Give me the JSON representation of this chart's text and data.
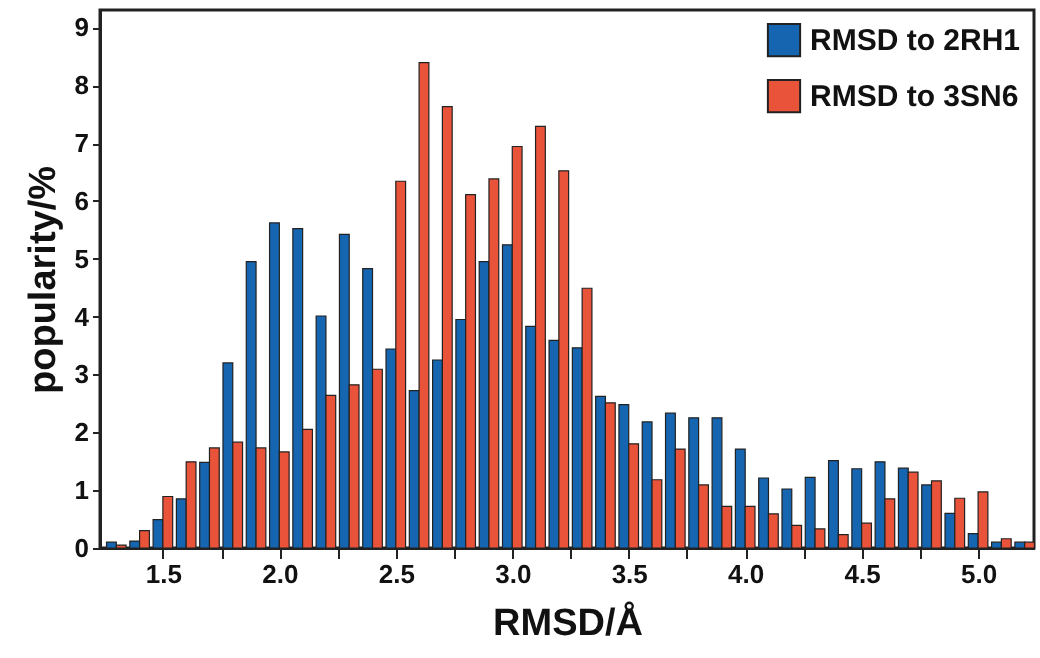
{
  "chart_data": {
    "type": "histogram",
    "xlabel": "RMSD/Å",
    "ylabel": "popularity/%",
    "bins": [
      1.25,
      1.35,
      1.45,
      1.55,
      1.65,
      1.75,
      1.85,
      1.95,
      2.05,
      2.15,
      2.25,
      2.35,
      2.45,
      2.55,
      2.65,
      2.75,
      2.85,
      2.95,
      3.05,
      3.15,
      3.25,
      3.35,
      3.45,
      3.55,
      3.65,
      3.75,
      3.85,
      3.95,
      4.05,
      4.15,
      4.25,
      4.35,
      4.45,
      4.55,
      4.65,
      4.75,
      4.85,
      4.95,
      5.05,
      5.15,
      5.25
    ],
    "series": [
      {
        "name": "RMSD to 2RH1",
        "color": "#1565b0",
        "values": [
          0.1,
          0.12,
          0.49,
          0.85,
          1.48,
          3.2,
          4.95,
          5.62,
          5.52,
          4.01,
          5.42,
          4.83,
          3.44,
          2.72,
          3.25,
          3.95,
          4.95,
          5.24,
          3.83,
          3.59,
          3.46,
          2.62,
          2.48,
          2.18,
          2.33,
          2.25,
          2.25,
          1.71,
          1.21,
          1.02,
          1.22,
          1.51,
          1.37,
          1.49,
          1.38,
          1.09,
          0.6,
          0.25,
          0.1,
          0.1
        ]
      },
      {
        "name": "RMSD to 3SN6",
        "color": "#e8533a",
        "values": [
          0.05,
          0.3,
          0.89,
          1.49,
          1.73,
          1.83,
          1.73,
          1.66,
          2.05,
          2.64,
          2.82,
          3.09,
          6.34,
          8.39,
          7.63,
          6.11,
          6.38,
          6.94,
          7.29,
          6.52,
          4.49,
          2.51,
          1.8,
          1.18,
          1.71,
          1.09,
          0.72,
          0.72,
          0.59,
          0.39,
          0.33,
          0.23,
          0.43,
          0.85,
          1.31,
          1.16,
          0.86,
          0.97,
          0.16,
          0.1
        ]
      }
    ],
    "xlim": [
      1.23,
      5.24
    ],
    "xticks": [
      1.5,
      {
        "value": 1.75,
        "label": null
      },
      {
        "value": 2,
        "label": "2.0"
      },
      {
        "value": 2.25,
        "label": null
      },
      2.5,
      {
        "value": 2.75,
        "label": null
      },
      {
        "value": 3,
        "label": "3.0"
      },
      {
        "value": 3.25,
        "label": null
      },
      3.5,
      {
        "value": 3.75,
        "label": null
      },
      {
        "value": 4,
        "label": "4.0"
      },
      {
        "value": 4.25,
        "label": null
      },
      4.5,
      {
        "value": 4.75,
        "label": null
      },
      {
        "value": 5,
        "label": "5.0"
      }
    ],
    "ylim": [
      0,
      9.3
    ],
    "yticks": [
      0,
      1,
      2,
      3,
      4,
      5,
      6,
      7,
      8,
      9
    ],
    "legend": "top right",
    "grid": false
  }
}
